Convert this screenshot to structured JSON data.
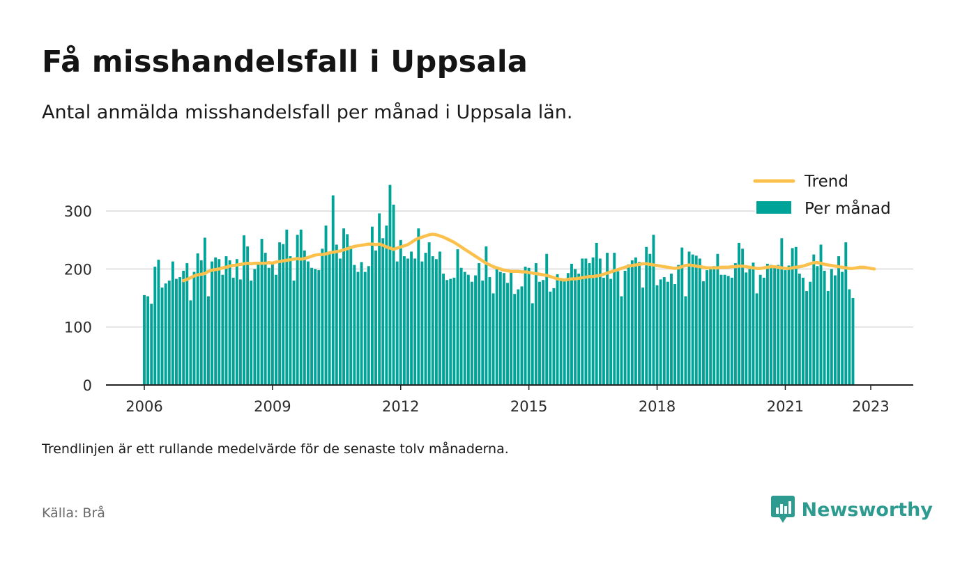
{
  "title": "Få misshandelsfall i Uppsala",
  "subtitle": "Antal anmälda misshandelsfall per månad i Uppsala län.",
  "note": "Trendlinjen är ett rullande medelvärde för de senaste tolv månaderna.",
  "source": "Källa: Brå",
  "brand": "Newsworthy",
  "colors": {
    "bar": "#00a398",
    "trend": "#fcc04c",
    "grid": "#d9d9d9",
    "axis": "#222222",
    "brand": "#2e9b90"
  },
  "chart_data": {
    "type": "bar",
    "x_start": "2006-01",
    "x_end": "2023-02",
    "xticks": [
      "2006",
      "2009",
      "2012",
      "2015",
      "2018",
      "2021",
      "2023"
    ],
    "yticks": [
      "0",
      "100",
      "200",
      "300"
    ],
    "ylim": [
      0,
      350
    ],
    "grid": true,
    "legend_position": "top-right",
    "series": [
      {
        "name": "Per månad",
        "kind": "bar",
        "values": [
          155,
          153,
          140,
          204,
          216,
          168,
          175,
          180,
          213,
          183,
          186,
          197,
          210,
          146,
          195,
          227,
          215,
          254,
          153,
          213,
          220,
          217,
          190,
          222,
          215,
          185,
          217,
          182,
          258,
          239,
          180,
          200,
          210,
          252,
          228,
          202,
          210,
          190,
          246,
          243,
          268,
          222,
          180,
          259,
          268,
          232,
          213,
          202,
          200,
          198,
          235,
          275,
          228,
          327,
          242,
          218,
          270,
          260,
          240,
          207,
          195,
          212,
          195,
          205,
          273,
          232,
          296,
          253,
          275,
          345,
          311,
          213,
          250,
          222,
          218,
          230,
          218,
          270,
          213,
          228,
          246,
          222,
          217,
          230,
          192,
          181,
          183,
          185,
          234,
          202,
          195,
          190,
          178,
          189,
          210,
          180,
          239,
          186,
          158,
          200,
          195,
          193,
          176,
          195,
          157,
          165,
          170,
          204,
          202,
          141,
          210,
          178,
          181,
          226,
          161,
          167,
          191,
          180,
          183,
          193,
          209,
          200,
          192,
          218,
          218,
          210,
          220,
          245,
          218,
          185,
          228,
          183,
          228,
          196,
          153,
          197,
          208,
          215,
          220,
          212,
          168,
          238,
          226,
          259,
          172,
          182,
          186,
          178,
          192,
          174,
          207,
          237,
          153,
          230,
          225,
          223,
          218,
          179,
          198,
          202,
          205,
          226,
          190,
          190,
          188,
          185,
          210,
          245,
          235,
          194,
          200,
          211,
          158,
          190,
          185,
          209,
          207,
          203,
          207,
          253,
          198,
          206,
          236,
          238,
          192,
          185,
          162,
          178,
          225,
          205,
          242,
          197,
          162,
          200,
          189,
          222,
          195,
          246,
          165,
          150
        ]
      },
      {
        "name": "Trend",
        "kind": "line",
        "start": "2006-12",
        "values": [
          180,
          182,
          185,
          188,
          190,
          191,
          192,
          196,
          198,
          199,
          200,
          202,
          203,
          205,
          206,
          207,
          208,
          209,
          210,
          209,
          210,
          210,
          210,
          210,
          211,
          210,
          212,
          213,
          214,
          215,
          216,
          217,
          218,
          217,
          218,
          220,
          222,
          224,
          225,
          225,
          226,
          228,
          229,
          230,
          231,
          233,
          235,
          237,
          239,
          240,
          241,
          242,
          243,
          243,
          242,
          243,
          241,
          238,
          236,
          234,
          236,
          238,
          240,
          242,
          246,
          250,
          253,
          255,
          257,
          259,
          260,
          259,
          257,
          255,
          252,
          249,
          246,
          242,
          238,
          234,
          230,
          226,
          222,
          218,
          214,
          210,
          207,
          204,
          202,
          200,
          198,
          197,
          196,
          196,
          196,
          195,
          195,
          194,
          193,
          192,
          191,
          190,
          189,
          187,
          185,
          183,
          182,
          181,
          182,
          183,
          183,
          184,
          185,
          186,
          187,
          187,
          188,
          189,
          191,
          193,
          195,
          197,
          199,
          201,
          203,
          205,
          206,
          207,
          208,
          209,
          209,
          208,
          207,
          206,
          205,
          204,
          203,
          202,
          201,
          202,
          204,
          206,
          207,
          206,
          205,
          204,
          203,
          202,
          202,
          202,
          202,
          203,
          203,
          203,
          204,
          204,
          205,
          205,
          204,
          203,
          202,
          201,
          201,
          202,
          203,
          204,
          204,
          203,
          202,
          201,
          201,
          202,
          203,
          204,
          205,
          207,
          209,
          211,
          211,
          210,
          208,
          207,
          206,
          205,
          204,
          203,
          202,
          201,
          201,
          202,
          203,
          203,
          202,
          201,
          200
        ]
      }
    ]
  }
}
